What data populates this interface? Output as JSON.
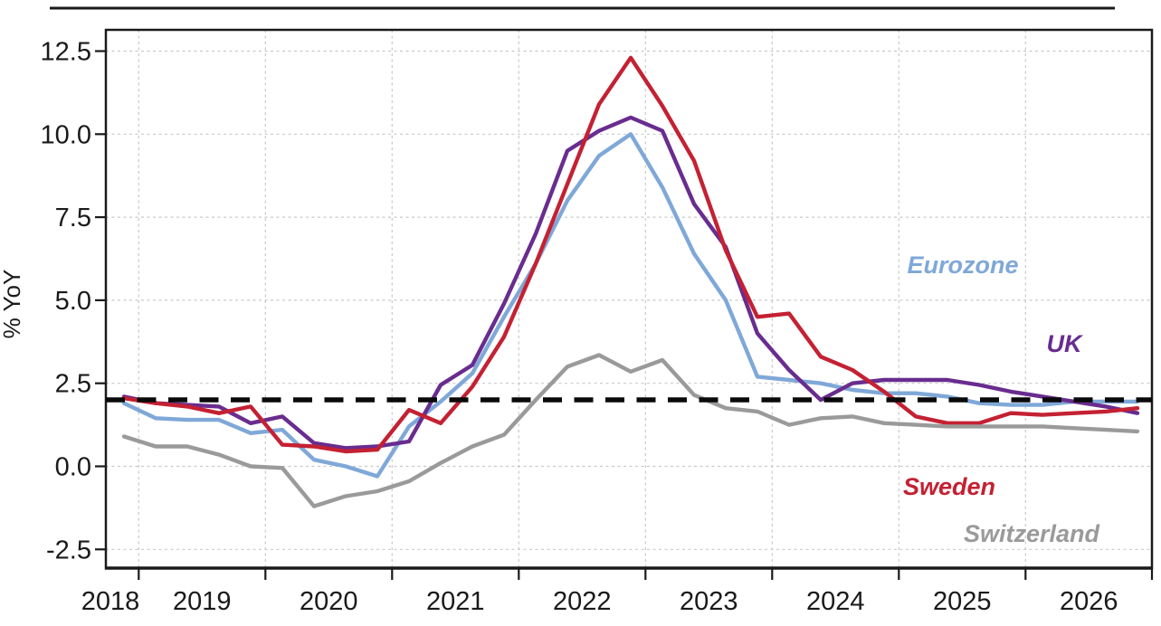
{
  "chart_data": {
    "type": "line",
    "title": "",
    "ylabel": "% YoY",
    "x_quarters": [
      "2018Q4",
      "2019Q1",
      "2019Q2",
      "2019Q3",
      "2019Q4",
      "2020Q1",
      "2020Q2",
      "2020Q3",
      "2020Q4",
      "2021Q1",
      "2021Q2",
      "2021Q3",
      "2021Q4",
      "2022Q1",
      "2022Q2",
      "2022Q3",
      "2022Q4",
      "2023Q1",
      "2023Q2",
      "2023Q3",
      "2023Q4",
      "2024Q1",
      "2024Q2",
      "2024Q3",
      "2024Q4",
      "2025Q1",
      "2025Q2",
      "2025Q3",
      "2025Q4",
      "2026Q1",
      "2026Q2",
      "2026Q3",
      "2026Q4"
    ],
    "series": [
      {
        "name": "Eurozone",
        "color": "#7FA8D8",
        "values": [
          1.9,
          1.45,
          1.4,
          1.4,
          1.0,
          1.1,
          0.2,
          0.0,
          -0.3,
          1.2,
          1.95,
          2.8,
          4.5,
          6.1,
          8.0,
          9.35,
          10.0,
          8.4,
          6.4,
          5.0,
          2.7,
          2.6,
          2.5,
          2.3,
          2.2,
          2.2,
          2.1,
          1.9,
          1.85,
          1.85,
          1.95,
          1.95,
          1.95
        ]
      },
      {
        "name": "UK",
        "color": "#692C8F",
        "values": [
          2.1,
          1.9,
          1.85,
          1.8,
          1.3,
          1.5,
          0.7,
          0.55,
          0.6,
          0.75,
          2.45,
          3.05,
          4.9,
          7.0,
          9.5,
          10.1,
          10.5,
          10.1,
          7.9,
          6.6,
          4.0,
          2.9,
          2.0,
          2.5,
          2.6,
          2.6,
          2.6,
          2.45,
          2.25,
          2.1,
          1.95,
          1.8,
          1.6
        ]
      },
      {
        "name": "Sweden",
        "color": "#C42133",
        "values": [
          2.05,
          1.9,
          1.8,
          1.6,
          1.8,
          0.65,
          0.6,
          0.45,
          0.5,
          1.7,
          1.3,
          2.4,
          3.9,
          6.1,
          8.5,
          10.9,
          12.3,
          10.85,
          9.2,
          6.5,
          4.5,
          4.6,
          3.3,
          2.9,
          2.25,
          1.5,
          1.3,
          1.3,
          1.6,
          1.55,
          1.6,
          1.65,
          1.75
        ]
      },
      {
        "name": "Switzerland",
        "color": "#9A9A9A",
        "values": [
          0.9,
          0.6,
          0.6,
          0.35,
          0.0,
          -0.05,
          -1.2,
          -0.9,
          -0.75,
          -0.45,
          0.1,
          0.6,
          0.95,
          2.0,
          3.0,
          3.35,
          2.85,
          3.2,
          2.15,
          1.75,
          1.65,
          1.25,
          1.45,
          1.5,
          1.3,
          1.25,
          1.2,
          1.2,
          1.2,
          1.2,
          1.15,
          1.1,
          1.05
        ]
      }
    ],
    "reference_line": {
      "value": 2.0,
      "style": "dashed",
      "color": "#0a0a0a"
    },
    "y_axis": {
      "ticks": [
        -2.5,
        0.0,
        2.5,
        5.0,
        7.5,
        10.0,
        12.5
      ],
      "tick_labels": [
        "-2.5",
        "0.0",
        "2.5",
        "5.0",
        "7.5",
        "10.0",
        "12.5"
      ],
      "range": [
        -3.1,
        13.1
      ]
    },
    "x_axis": {
      "year_labels": [
        "2018",
        "2019",
        "2020",
        "2021",
        "2022",
        "2023",
        "2024",
        "2025",
        "2026"
      ],
      "boundary_tick_years": [
        2019,
        2020,
        2021,
        2022,
        2023,
        2024,
        2025,
        2026,
        2027
      ],
      "gridline_years": [
        2019,
        2020,
        2021,
        2022,
        2023,
        2024,
        2025,
        2026
      ]
    },
    "grid": true,
    "legend": "inline-labels",
    "colors": {
      "grid": "#c9c9c9",
      "axis": "#1a1a1a",
      "background": "#ffffff"
    }
  }
}
